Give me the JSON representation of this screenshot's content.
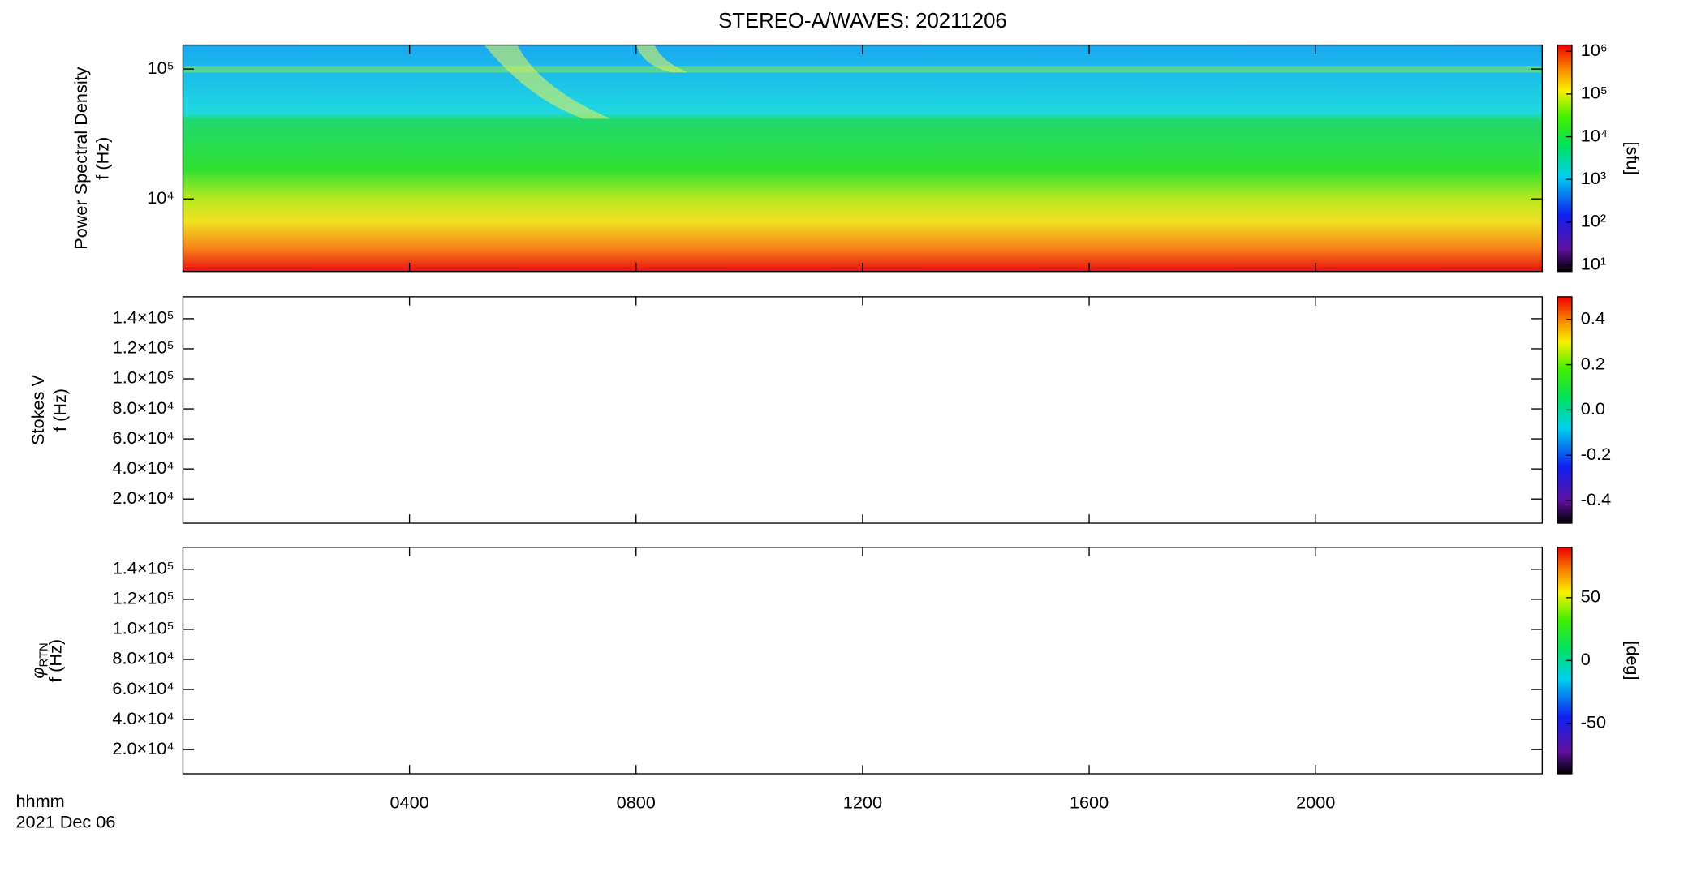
{
  "title": "STEREO-A/WAVES: 20211206",
  "time_label": "hhmm",
  "date_label": "2021 Dec 06",
  "chart_data": [
    {
      "type": "heatmap",
      "ylabel": [
        "Power Spectral Density",
        "f (Hz)"
      ],
      "y_scale": "log",
      "ylim": [
        2760,
        153000
      ],
      "yticks": [
        {
          "value": 10000,
          "label": "10⁴"
        },
        {
          "value": 100000,
          "label": "10⁵"
        }
      ],
      "xlim": [
        0,
        24
      ],
      "colorbar": {
        "label": "[sfu]",
        "scale": "log",
        "lim": [
          7,
          1400000
        ],
        "ticks": [
          {
            "value": 10,
            "label": "10¹"
          },
          {
            "value": 100,
            "label": "10²"
          },
          {
            "value": 1000,
            "label": "10³"
          },
          {
            "value": 10000,
            "label": "10⁴"
          },
          {
            "value": 100000,
            "label": "10⁵"
          },
          {
            "value": 1000000,
            "label": "10⁶"
          }
        ]
      }
    },
    {
      "type": "heatmap",
      "ylabel": [
        "Stokes V",
        "f (Hz)"
      ],
      "y_scale": "linear",
      "ylim": [
        3900,
        154600
      ],
      "yticks": [
        {
          "value": 20000,
          "label": "2.0×10⁴"
        },
        {
          "value": 40000,
          "label": "4.0×10⁴"
        },
        {
          "value": 60000,
          "label": "6.0×10⁴"
        },
        {
          "value": 80000,
          "label": "8.0×10⁴"
        },
        {
          "value": 100000,
          "label": "1.0×10⁵"
        },
        {
          "value": 120000,
          "label": "1.2×10⁵"
        },
        {
          "value": 140000,
          "label": "1.4×10⁵"
        }
      ],
      "xlim": [
        0,
        24
      ],
      "colorbar": {
        "scale": "linear",
        "lim": [
          -0.5,
          0.5
        ],
        "ticks": [
          {
            "value": -0.4,
            "label": "-0.4"
          },
          {
            "value": -0.2,
            "label": "-0.2"
          },
          {
            "value": 0,
            "label": "0.0"
          },
          {
            "value": 0.2,
            "label": "0.2"
          },
          {
            "value": 0.4,
            "label": "0.4"
          }
        ]
      }
    },
    {
      "type": "heatmap",
      "ylabel_symbol": "φ",
      "ylabel_subscript": "RTN",
      "ylabel": [
        "f (Hz)"
      ],
      "y_scale": "linear",
      "ylim": [
        3900,
        154600
      ],
      "yticks": [
        {
          "value": 20000,
          "label": "2.0×10⁴"
        },
        {
          "value": 40000,
          "label": "4.0×10⁴"
        },
        {
          "value": 60000,
          "label": "6.0×10⁴"
        },
        {
          "value": 80000,
          "label": "8.0×10⁴"
        },
        {
          "value": 100000,
          "label": "1.0×10⁵"
        },
        {
          "value": 120000,
          "label": "1.2×10⁵"
        },
        {
          "value": 140000,
          "label": "1.4×10⁵"
        }
      ],
      "xlim": [
        0,
        24
      ],
      "xticks": [
        {
          "value": 4,
          "label": "0400"
        },
        {
          "value": 8,
          "label": "0800"
        },
        {
          "value": 12,
          "label": "1200"
        },
        {
          "value": 16,
          "label": "1600"
        },
        {
          "value": 20,
          "label": "2000"
        }
      ],
      "colorbar": {
        "label": "[deg]",
        "scale": "linear",
        "lim": [
          -90,
          90
        ],
        "ticks": [
          -50,
          0,
          50
        ]
      }
    }
  ]
}
